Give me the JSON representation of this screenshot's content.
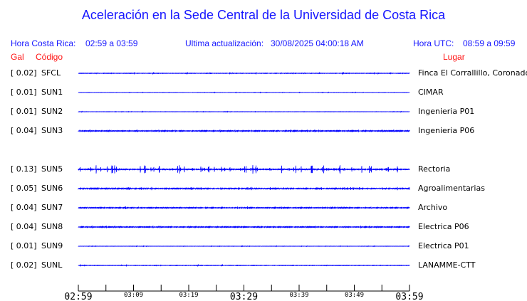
{
  "title": "Aceleración en la Sede Central de la Universidad de Costa Rica",
  "header": {
    "cr_label": "Hora Costa Rica:",
    "cr_range": "02:59 a 03:59",
    "update_label": "Ultima actualización:",
    "update_value": "30/08/2025 04:00:18 AM",
    "utc_label": "Hora UTC:",
    "utc_range": "08:59 a 09:59"
  },
  "columns": {
    "gal": "Gal",
    "code": "Código",
    "place": "Lugar"
  },
  "trace_color": "#0000ff",
  "stations": [
    {
      "gal": "[   0.02]",
      "code": "SFCL",
      "place": "Finca El Corrallillo, Coronado",
      "level": 0.02
    },
    {
      "gal": "[   0.01]",
      "code": "SUN1",
      "place": "CIMAR",
      "level": 0.01
    },
    {
      "gal": "[   0.01]",
      "code": "SUN2",
      "place": "Ingenieria P01",
      "level": 0.01
    },
    {
      "gal": "[   0.04]",
      "code": "SUN3",
      "place": "Ingenieria P06",
      "level": 0.04
    },
    null,
    {
      "gal": "[   0.13]",
      "code": "SUN5",
      "place": "Rectoria",
      "level": 0.13
    },
    {
      "gal": "[   0.05]",
      "code": "SUN6",
      "place": "Agroalimentarias",
      "level": 0.05
    },
    {
      "gal": "[   0.04]",
      "code": "SUN7",
      "place": "Archivo",
      "level": 0.04
    },
    {
      "gal": "[   0.04]",
      "code": "SUN8",
      "place": "Electrica P06",
      "level": 0.04
    },
    {
      "gal": "[   0.01]",
      "code": "SUN9",
      "place": "Electrica P01",
      "level": 0.01
    },
    {
      "gal": "[   0.02]",
      "code": "SUNL",
      "place": "LANAMME-CTT",
      "level": 0.02
    }
  ],
  "axis": {
    "ticks": [
      "02:59",
      "03:09",
      "03:19",
      "03:29",
      "03:39",
      "03:49",
      "03:59"
    ]
  }
}
